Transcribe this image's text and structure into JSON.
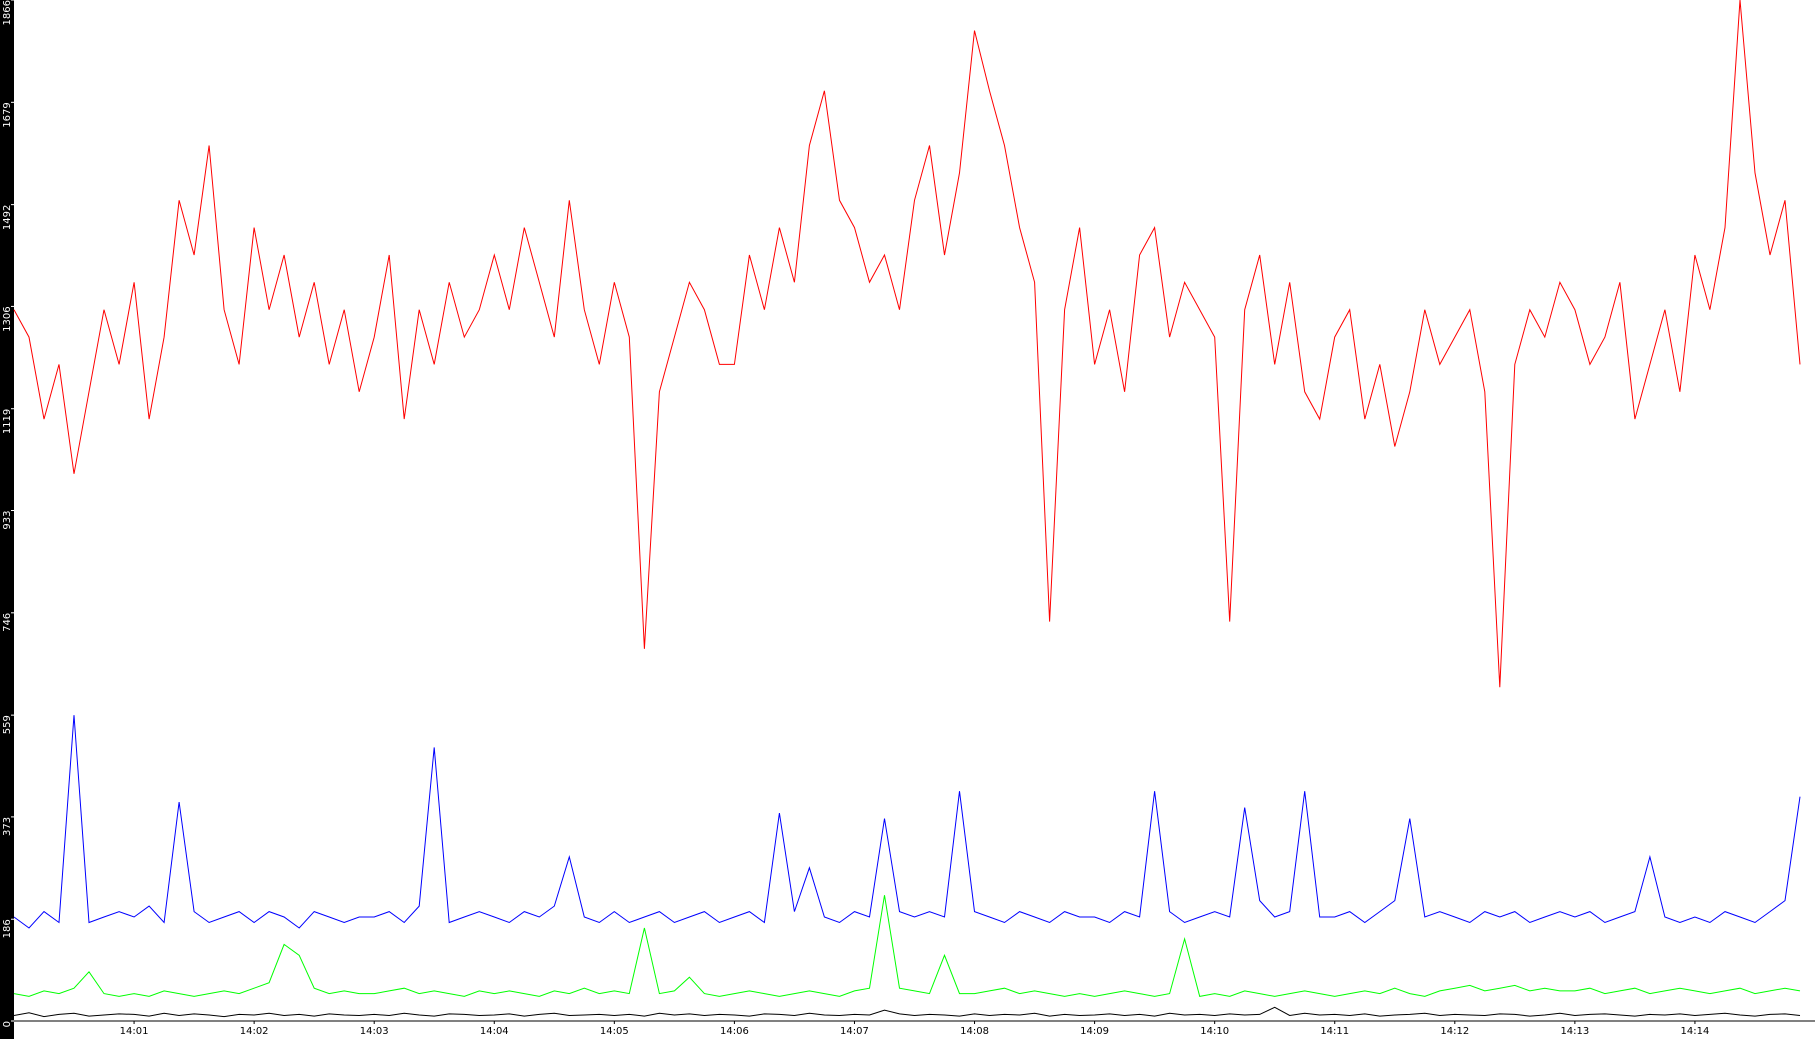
{
  "chart_data": {
    "type": "line",
    "categories": [
      null,
      null,
      null,
      null,
      null,
      null,
      null,
      null,
      "14:01",
      null,
      null,
      null,
      null,
      null,
      null,
      null,
      "14:02",
      null,
      null,
      null,
      null,
      null,
      null,
      null,
      "14:03",
      null,
      null,
      null,
      null,
      null,
      null,
      null,
      "14:04",
      null,
      null,
      null,
      null,
      null,
      null,
      null,
      "14:05",
      null,
      null,
      null,
      null,
      null,
      null,
      null,
      "14:06",
      null,
      null,
      null,
      null,
      null,
      null,
      null,
      "14:07",
      null,
      null,
      null,
      null,
      null,
      null,
      null,
      "14:08",
      null,
      null,
      null,
      null,
      null,
      null,
      null,
      "14:09",
      null,
      null,
      null,
      null,
      null,
      null,
      null,
      "14:10",
      null,
      null,
      null,
      null,
      null,
      null,
      null,
      "14:11",
      null,
      null,
      null,
      null,
      null,
      null,
      null,
      "14:12",
      null,
      null,
      null,
      null,
      null,
      null,
      null,
      "14:13",
      null,
      null,
      null,
      null,
      null,
      null,
      null,
      "14:14",
      null,
      null,
      null,
      null,
      null,
      null,
      null
    ],
    "series": [
      {
        "color": "#ff0000",
        "values": [
          1300,
          1250,
          1100,
          1200,
          1000,
          1150,
          1300,
          1200,
          1350,
          1100,
          1250,
          1500,
          1400,
          1600,
          1300,
          1200,
          1450,
          1300,
          1400,
          1250,
          1350,
          1200,
          1300,
          1150,
          1250,
          1400,
          1100,
          1300,
          1200,
          1350,
          1250,
          1300,
          1400,
          1300,
          1450,
          1350,
          1250,
          1500,
          1300,
          1200,
          1350,
          1250,
          680,
          1150,
          1250,
          1350,
          1300,
          1200,
          1200,
          1400,
          1300,
          1450,
          1350,
          1600,
          1700,
          1500,
          1450,
          1350,
          1400,
          1300,
          1500,
          1600,
          1400,
          1550,
          1810,
          1700,
          1600,
          1450,
          1350,
          730,
          1300,
          1450,
          1200,
          1300,
          1150,
          1400,
          1450,
          1250,
          1350,
          1300,
          1250,
          730,
          1300,
          1400,
          1200,
          1350,
          1150,
          1100,
          1250,
          1300,
          1100,
          1200,
          1050,
          1150,
          1300,
          1200,
          1250,
          1300,
          1150,
          610,
          1200,
          1300,
          1250,
          1350,
          1300,
          1200,
          1250,
          1350,
          1100,
          1200,
          1300,
          1150,
          1400,
          1300,
          1450,
          1866,
          1550,
          1400,
          1500,
          1200
        ]
      },
      {
        "color": "#0000ff",
        "values": [
          190,
          170,
          200,
          180,
          559,
          180,
          190,
          200,
          190,
          210,
          180,
          400,
          200,
          180,
          190,
          200,
          180,
          200,
          190,
          170,
          200,
          190,
          180,
          190,
          190,
          200,
          180,
          210,
          500,
          180,
          190,
          200,
          190,
          180,
          200,
          190,
          210,
          300,
          190,
          180,
          200,
          180,
          190,
          200,
          180,
          190,
          200,
          180,
          190,
          200,
          180,
          380,
          200,
          280,
          190,
          180,
          200,
          190,
          370,
          200,
          190,
          200,
          190,
          420,
          200,
          190,
          180,
          200,
          190,
          180,
          200,
          190,
          190,
          180,
          200,
          190,
          420,
          200,
          180,
          190,
          200,
          190,
          390,
          220,
          190,
          200,
          420,
          190,
          190,
          200,
          180,
          200,
          220,
          370,
          190,
          200,
          190,
          180,
          200,
          190,
          200,
          180,
          190,
          200,
          190,
          200,
          180,
          190,
          200,
          300,
          190,
          180,
          190,
          180,
          200,
          190,
          180,
          200,
          220,
          410
        ]
      },
      {
        "color": "#00ff00",
        "values": [
          50,
          45,
          55,
          50,
          60,
          90,
          50,
          45,
          50,
          45,
          55,
          50,
          45,
          50,
          55,
          50,
          60,
          70,
          140,
          120,
          60,
          50,
          55,
          50,
          50,
          55,
          60,
          50,
          55,
          50,
          45,
          55,
          50,
          55,
          50,
          45,
          55,
          50,
          60,
          50,
          55,
          50,
          170,
          50,
          55,
          80,
          50,
          45,
          50,
          55,
          50,
          45,
          50,
          55,
          50,
          45,
          55,
          60,
          230,
          60,
          55,
          50,
          120,
          50,
          50,
          55,
          60,
          50,
          55,
          50,
          45,
          50,
          45,
          50,
          55,
          50,
          45,
          50,
          150,
          45,
          50,
          45,
          55,
          50,
          45,
          50,
          55,
          50,
          45,
          50,
          55,
          50,
          60,
          50,
          45,
          55,
          60,
          65,
          55,
          60,
          65,
          55,
          60,
          55,
          55,
          60,
          50,
          55,
          60,
          50,
          55,
          60,
          55,
          50,
          55,
          60,
          50,
          55,
          60,
          55
        ]
      },
      {
        "color": "#000000",
        "values": [
          10,
          15,
          8,
          12,
          14,
          9,
          11,
          13,
          12,
          9,
          14,
          10,
          13,
          11,
          8,
          12,
          11,
          14,
          10,
          12,
          9,
          13,
          11,
          10,
          12,
          10,
          14,
          11,
          9,
          13,
          12,
          10,
          11,
          13,
          9,
          12,
          14,
          10,
          11,
          12,
          10,
          12,
          9,
          14,
          11,
          13,
          10,
          12,
          11,
          9,
          13,
          12,
          10,
          14,
          11,
          10,
          12,
          11,
          20,
          13,
          10,
          12,
          11,
          9,
          13,
          10,
          12,
          11,
          14,
          9,
          12,
          10,
          11,
          13,
          10,
          12,
          9,
          14,
          11,
          12,
          10,
          13,
          11,
          12,
          25,
          10,
          14,
          11,
          12,
          10,
          13,
          9,
          11,
          12,
          14,
          10,
          12,
          11,
          10,
          13,
          12,
          9,
          11,
          14,
          10,
          12,
          13,
          11,
          9,
          12,
          11,
          13,
          10,
          12,
          14,
          11,
          9,
          12,
          13,
          10
        ]
      }
    ],
    "ylim": [
      0,
      1866
    ],
    "yticks": [
      0,
      186,
      373,
      559,
      746,
      933,
      1119,
      1306,
      1492,
      1679,
      1866
    ]
  }
}
